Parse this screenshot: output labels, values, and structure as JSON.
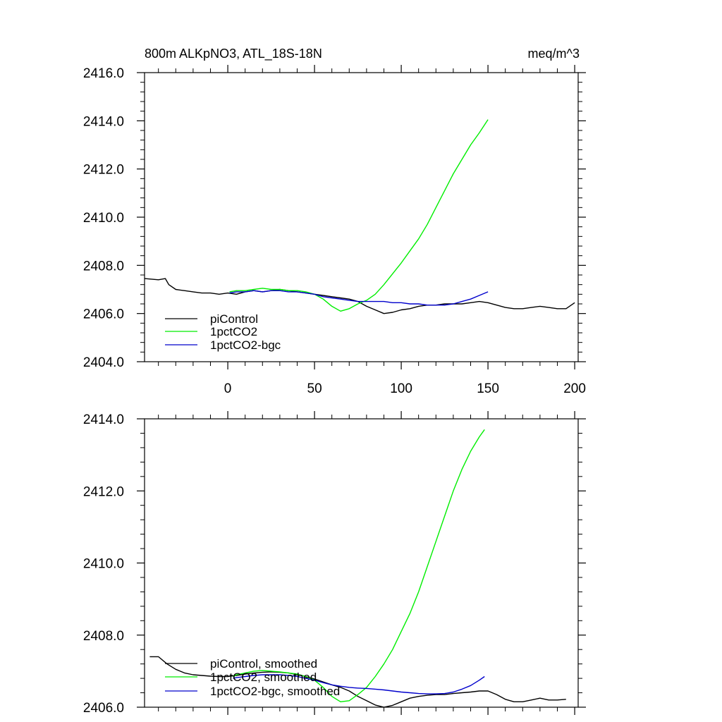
{
  "chart_data": [
    {
      "type": "line",
      "title": "800m ALKpNO3, ATL_18S-18N",
      "units": "meq/m^3",
      "xlim": [
        -48,
        202
      ],
      "ylim": [
        2404.0,
        2416.0
      ],
      "x_ticks": [
        0,
        50,
        100,
        150,
        200
      ],
      "x_tick_labels": [
        "0",
        "50",
        "100",
        "150",
        "200"
      ],
      "y_ticks": [
        2404.0,
        2406.0,
        2408.0,
        2410.0,
        2412.0,
        2414.0,
        2416.0
      ],
      "y_tick_labels": [
        "2404.0",
        "2406.0",
        "2408.0",
        "2410.0",
        "2412.0",
        "2414.0",
        "2416.0"
      ],
      "legend_position": "bottom-left",
      "series": [
        {
          "name": "piControl",
          "color": "#000000",
          "x": [
            -48,
            -40,
            -36,
            -34,
            -30,
            -25,
            -20,
            -15,
            -10,
            -5,
            0,
            5,
            10,
            15,
            20,
            25,
            30,
            35,
            40,
            45,
            50,
            55,
            60,
            65,
            70,
            75,
            80,
            85,
            90,
            95,
            100,
            105,
            110,
            115,
            120,
            125,
            130,
            135,
            140,
            145,
            150,
            155,
            160,
            165,
            170,
            175,
            180,
            185,
            190,
            195,
            200
          ],
          "y": [
            2407.45,
            2407.4,
            2407.45,
            2407.2,
            2407.0,
            2406.95,
            2406.9,
            2406.85,
            2406.85,
            2406.8,
            2406.85,
            2406.8,
            2406.9,
            2406.95,
            2406.9,
            2406.95,
            2407.0,
            2406.95,
            2406.9,
            2406.85,
            2406.8,
            2406.75,
            2406.7,
            2406.65,
            2406.6,
            2406.5,
            2406.3,
            2406.15,
            2406.0,
            2406.05,
            2406.15,
            2406.2,
            2406.3,
            2406.35,
            2406.35,
            2406.4,
            2406.4,
            2406.4,
            2406.45,
            2406.5,
            2406.45,
            2406.35,
            2406.25,
            2406.2,
            2406.2,
            2406.25,
            2406.3,
            2406.25,
            2406.2,
            2406.2,
            2406.45
          ]
        },
        {
          "name": "1pctCO2",
          "color": "#00ee00",
          "x": [
            1,
            5,
            10,
            15,
            20,
            25,
            30,
            35,
            40,
            45,
            50,
            55,
            60,
            65,
            70,
            75,
            80,
            85,
            90,
            95,
            100,
            105,
            110,
            115,
            120,
            125,
            130,
            135,
            140,
            145,
            150
          ],
          "y": [
            2406.9,
            2406.95,
            2406.95,
            2407.0,
            2407.05,
            2407.0,
            2407.0,
            2406.95,
            2406.95,
            2406.9,
            2406.8,
            2406.6,
            2406.3,
            2406.1,
            2406.2,
            2406.4,
            2406.55,
            2406.8,
            2407.2,
            2407.65,
            2408.1,
            2408.6,
            2409.1,
            2409.7,
            2410.4,
            2411.1,
            2411.8,
            2412.4,
            2413.0,
            2413.5,
            2414.05
          ]
        },
        {
          "name": "1pctCO2-bgc",
          "color": "#0000cc",
          "x": [
            1,
            5,
            10,
            15,
            20,
            25,
            30,
            35,
            40,
            45,
            50,
            55,
            60,
            65,
            70,
            75,
            80,
            85,
            90,
            95,
            100,
            105,
            110,
            115,
            120,
            125,
            130,
            135,
            140,
            145,
            150
          ],
          "y": [
            2406.85,
            2406.9,
            2406.9,
            2406.95,
            2406.9,
            2406.95,
            2406.95,
            2406.9,
            2406.9,
            2406.85,
            2406.8,
            2406.7,
            2406.65,
            2406.6,
            2406.55,
            2406.5,
            2406.5,
            2406.5,
            2406.5,
            2406.45,
            2406.45,
            2406.4,
            2406.4,
            2406.35,
            2406.35,
            2406.35,
            2406.4,
            2406.5,
            2406.6,
            2406.75,
            2406.9
          ]
        }
      ]
    },
    {
      "type": "line",
      "title": "",
      "xlim": [
        -48,
        202
      ],
      "ylim": [
        2406.0,
        2414.0
      ],
      "x_ticks": [
        0,
        50,
        100,
        150,
        200
      ],
      "y_ticks": [
        2406.0,
        2408.0,
        2410.0,
        2412.0,
        2414.0
      ],
      "y_tick_labels": [
        "2406.0",
        "2408.0",
        "2410.0",
        "2412.0",
        "2414.0"
      ],
      "legend_position": "bottom-left",
      "series": [
        {
          "name": "piControl, smoothed",
          "color": "#000000",
          "x": [
            -45,
            -40,
            -35,
            -30,
            -25,
            -20,
            -15,
            -10,
            -5,
            0,
            5,
            10,
            15,
            20,
            25,
            30,
            35,
            40,
            45,
            50,
            55,
            60,
            65,
            70,
            75,
            80,
            85,
            90,
            95,
            100,
            105,
            110,
            115,
            120,
            125,
            130,
            135,
            140,
            145,
            150,
            155,
            160,
            165,
            170,
            175,
            180,
            185,
            190,
            195
          ],
          "y": [
            2407.4,
            2407.4,
            2407.2,
            2407.05,
            2406.95,
            2406.9,
            2406.88,
            2406.86,
            2406.85,
            2406.85,
            2406.88,
            2406.92,
            2406.95,
            2406.97,
            2406.98,
            2406.97,
            2406.95,
            2406.9,
            2406.85,
            2406.78,
            2406.7,
            2406.62,
            2406.55,
            2406.45,
            2406.3,
            2406.18,
            2406.06,
            2406.0,
            2406.05,
            2406.15,
            2406.25,
            2406.3,
            2406.33,
            2406.35,
            2406.35,
            2406.38,
            2406.4,
            2406.42,
            2406.45,
            2406.45,
            2406.35,
            2406.22,
            2406.15,
            2406.15,
            2406.2,
            2406.25,
            2406.2,
            2406.2,
            2406.22
          ]
        },
        {
          "name": "1pctCO2, smoothed",
          "color": "#00ee00",
          "x": [
            3,
            5,
            10,
            15,
            20,
            25,
            30,
            35,
            40,
            45,
            50,
            55,
            60,
            65,
            70,
            75,
            80,
            85,
            90,
            95,
            100,
            105,
            110,
            115,
            120,
            125,
            130,
            135,
            140,
            145,
            148
          ],
          "y": [
            2406.85,
            2406.9,
            2406.95,
            2407.0,
            2407.02,
            2407.0,
            2406.98,
            2406.95,
            2406.92,
            2406.85,
            2406.75,
            2406.55,
            2406.3,
            2406.15,
            2406.18,
            2406.35,
            2406.55,
            2406.85,
            2407.2,
            2407.6,
            2408.1,
            2408.6,
            2409.2,
            2409.9,
            2410.6,
            2411.3,
            2412.0,
            2412.6,
            2413.1,
            2413.5,
            2413.7
          ]
        },
        {
          "name": "1pctCO2-bgc, smoothed",
          "color": "#0000cc",
          "x": [
            3,
            5,
            10,
            15,
            20,
            25,
            30,
            35,
            40,
            45,
            50,
            55,
            60,
            65,
            70,
            75,
            80,
            85,
            90,
            95,
            100,
            105,
            110,
            115,
            120,
            125,
            130,
            135,
            140,
            145,
            148
          ],
          "y": [
            2406.8,
            2406.82,
            2406.85,
            2406.88,
            2406.9,
            2406.9,
            2406.9,
            2406.88,
            2406.85,
            2406.8,
            2406.75,
            2406.68,
            2406.62,
            2406.58,
            2406.55,
            2406.53,
            2406.52,
            2406.5,
            2406.48,
            2406.45,
            2406.42,
            2406.4,
            2406.38,
            2406.37,
            2406.37,
            2406.38,
            2406.42,
            2406.5,
            2406.6,
            2406.75,
            2406.85
          ]
        }
      ]
    }
  ]
}
